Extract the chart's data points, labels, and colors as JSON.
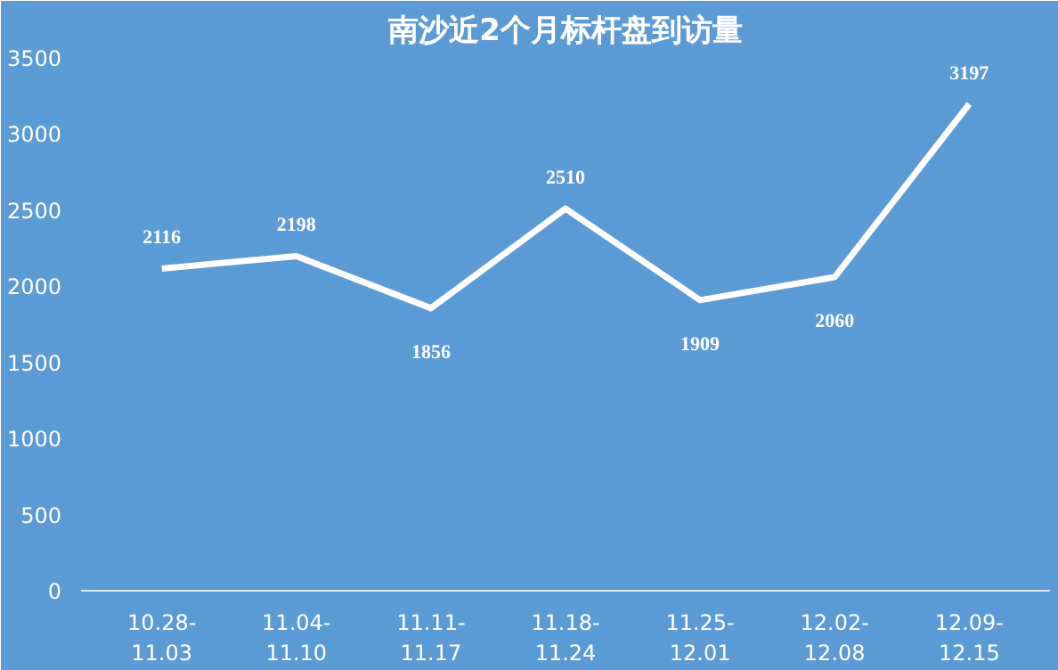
{
  "chart_data": {
    "type": "line",
    "title": "南沙近2个月标杆盘到访量",
    "categories": [
      "10.28-\n11.03",
      "11.04-\n11.10",
      "11.11-\n11.17",
      "11.18-\n11.24",
      "11.25-\n12.01",
      "12.02-\n12.08",
      "12.09-\n12.15"
    ],
    "series": [
      {
        "color": "#ffffff",
        "values": [
          2116,
          2198,
          1856,
          2510,
          1909,
          2060,
          3197
        ]
      }
    ],
    "ylim": [
      0,
      3500
    ],
    "yticks": [
      0,
      500,
      1000,
      1500,
      2000,
      2500,
      3000,
      3500
    ],
    "data_labels": true,
    "grid": false,
    "marker": "none",
    "line_style": "solid"
  }
}
